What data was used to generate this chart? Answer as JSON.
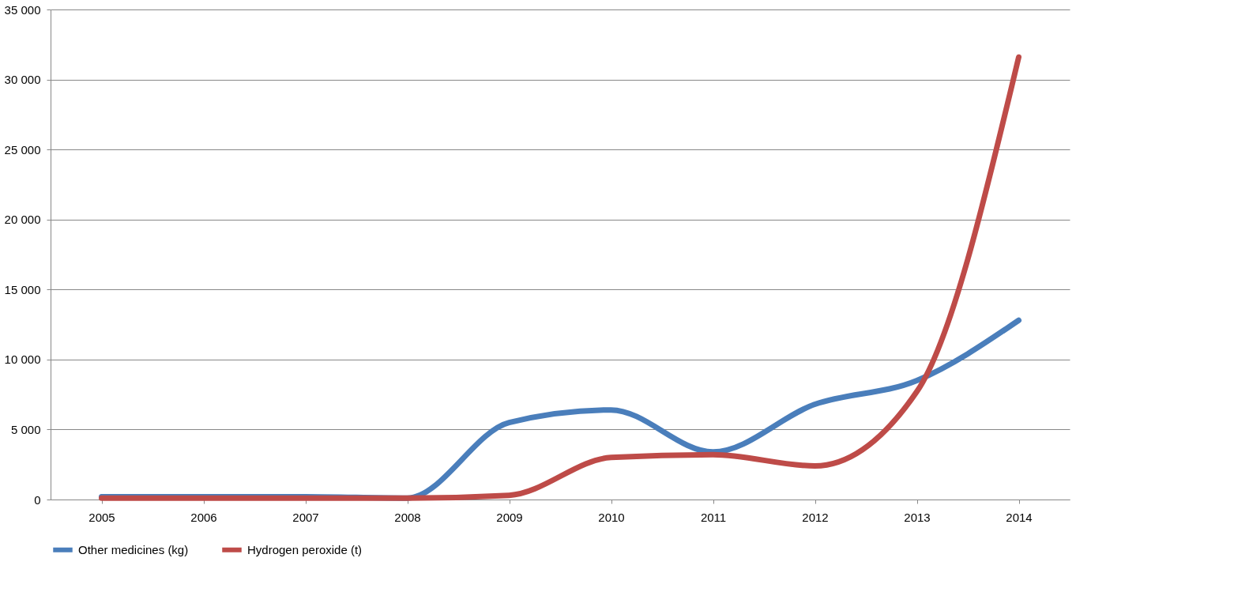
{
  "chart_data": {
    "type": "line",
    "categories": [
      "2005",
      "2006",
      "2007",
      "2008",
      "2009",
      "2010",
      "2011",
      "2012",
      "2013",
      "2014"
    ],
    "series": [
      {
        "name": "Other medicines (kg)",
        "color": "#4a7ebb",
        "values": [
          200,
          200,
          200,
          100,
          5500,
          6400,
          3400,
          6800,
          8500,
          12800
        ]
      },
      {
        "name": "Hydrogen peroxide (t)",
        "color": "#be4b48",
        "values": [
          100,
          100,
          100,
          100,
          300,
          3000,
          3200,
          2400,
          7700,
          31600
        ]
      }
    ],
    "ylim": [
      0,
      35000
    ],
    "yticks": [
      {
        "value": 0,
        "label": "0"
      },
      {
        "value": 5000,
        "label": "5 000"
      },
      {
        "value": 10000,
        "label": "10 000"
      },
      {
        "value": 15000,
        "label": "15 000"
      },
      {
        "value": 20000,
        "label": "20 000"
      },
      {
        "value": 25000,
        "label": "25 000"
      },
      {
        "value": 30000,
        "label": "30 000"
      },
      {
        "value": 35000,
        "label": "35 000"
      }
    ],
    "grid": "y",
    "legend": "bottom",
    "marker": "none",
    "line_style": "solid"
  }
}
